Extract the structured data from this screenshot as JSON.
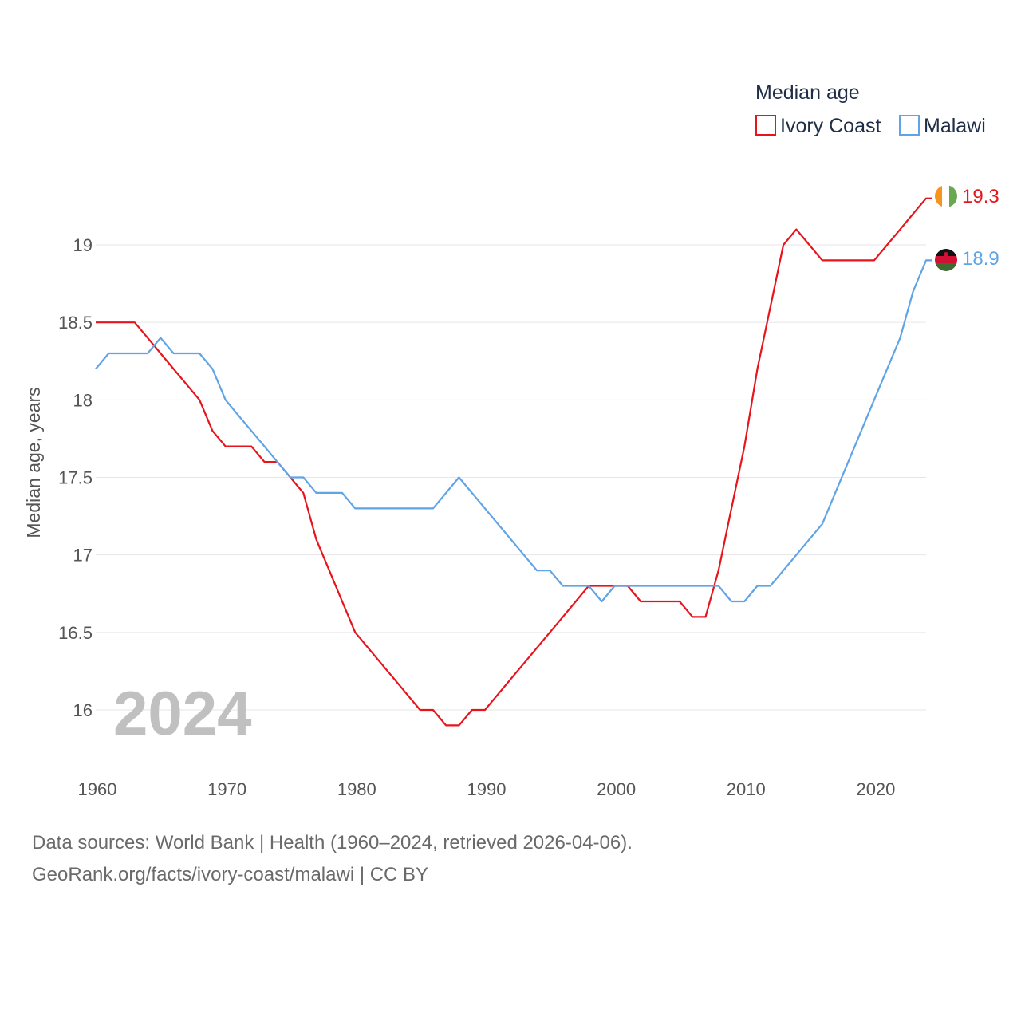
{
  "chart_data": {
    "type": "line",
    "ylabel": "Median age, years",
    "xlabel": "",
    "legend_title": "Median age",
    "legend_position": "top-right",
    "year_watermark": "2024",
    "xlim": [
      1960,
      2024
    ],
    "ylim": [
      15.6,
      19.5
    ],
    "x_ticks": [
      1960,
      1970,
      1980,
      1990,
      2000,
      2010,
      2020
    ],
    "x_tick_labels": [
      "1960",
      "1970",
      "1980",
      "1990",
      "2000",
      "2010",
      "2020"
    ],
    "y_ticks": [
      16,
      16.5,
      17,
      17.5,
      18,
      18.5,
      19
    ],
    "y_tick_labels": [
      "16",
      "16.5",
      "17",
      "17.5",
      "18",
      "18.5",
      "19"
    ],
    "grid": true,
    "series": [
      {
        "name": "Ivory Coast",
        "color": "#e8141c",
        "end_label": "19.3",
        "flag_icon": "ivory-coast-flag-icon",
        "x": [
          1960,
          1961,
          1962,
          1963,
          1964,
          1965,
          1966,
          1967,
          1968,
          1969,
          1970,
          1971,
          1972,
          1973,
          1974,
          1975,
          1976,
          1977,
          1978,
          1979,
          1980,
          1981,
          1982,
          1983,
          1984,
          1985,
          1986,
          1987,
          1988,
          1989,
          1990,
          1991,
          1992,
          1993,
          1994,
          1995,
          1996,
          1997,
          1998,
          1999,
          2000,
          2001,
          2002,
          2003,
          2004,
          2005,
          2006,
          2007,
          2008,
          2009,
          2010,
          2011,
          2012,
          2013,
          2014,
          2015,
          2016,
          2017,
          2018,
          2019,
          2020,
          2021,
          2022,
          2023,
          2024
        ],
        "values": [
          18.5,
          18.5,
          18.5,
          18.5,
          18.4,
          18.3,
          18.2,
          18.1,
          18.0,
          17.8,
          17.7,
          17.7,
          17.7,
          17.6,
          17.6,
          17.5,
          17.4,
          17.1,
          16.9,
          16.7,
          16.5,
          16.4,
          16.3,
          16.2,
          16.1,
          16.0,
          16.0,
          15.9,
          15.9,
          16.0,
          16.0,
          16.1,
          16.2,
          16.3,
          16.4,
          16.5,
          16.6,
          16.7,
          16.8,
          16.8,
          16.8,
          16.8,
          16.7,
          16.7,
          16.7,
          16.7,
          16.6,
          16.6,
          16.9,
          17.3,
          17.7,
          18.2,
          18.6,
          19.0,
          19.1,
          19.0,
          18.9,
          18.9,
          18.9,
          18.9,
          18.9,
          19.0,
          19.1,
          19.2,
          19.3
        ]
      },
      {
        "name": "Malawi",
        "color": "#5fa4e6",
        "end_label": "18.9",
        "flag_icon": "malawi-flag-icon",
        "x": [
          1960,
          1961,
          1962,
          1963,
          1964,
          1965,
          1966,
          1967,
          1968,
          1969,
          1970,
          1971,
          1972,
          1973,
          1974,
          1975,
          1976,
          1977,
          1978,
          1979,
          1980,
          1981,
          1982,
          1983,
          1984,
          1985,
          1986,
          1987,
          1988,
          1989,
          1990,
          1991,
          1992,
          1993,
          1994,
          1995,
          1996,
          1997,
          1998,
          1999,
          2000,
          2001,
          2002,
          2003,
          2004,
          2005,
          2006,
          2007,
          2008,
          2009,
          2010,
          2011,
          2012,
          2013,
          2014,
          2015,
          2016,
          2017,
          2018,
          2019,
          2020,
          2021,
          2022,
          2023,
          2024
        ],
        "values": [
          18.2,
          18.3,
          18.3,
          18.3,
          18.3,
          18.4,
          18.3,
          18.3,
          18.3,
          18.2,
          18.0,
          17.9,
          17.8,
          17.7,
          17.6,
          17.5,
          17.5,
          17.4,
          17.4,
          17.4,
          17.3,
          17.3,
          17.3,
          17.3,
          17.3,
          17.3,
          17.3,
          17.4,
          17.5,
          17.4,
          17.3,
          17.2,
          17.1,
          17.0,
          16.9,
          16.9,
          16.8,
          16.8,
          16.8,
          16.7,
          16.8,
          16.8,
          16.8,
          16.8,
          16.8,
          16.8,
          16.8,
          16.8,
          16.8,
          16.7,
          16.7,
          16.8,
          16.8,
          16.9,
          17.0,
          17.1,
          17.2,
          17.4,
          17.6,
          17.8,
          18.0,
          18.2,
          18.4,
          18.7,
          18.9
        ]
      }
    ]
  },
  "footer": {
    "line1": "Data sources: World Bank | Health (1960–2024, retrieved 2026-04-06).",
    "line2": "GeoRank.org/facts/ivory-coast/malawi | CC BY"
  }
}
